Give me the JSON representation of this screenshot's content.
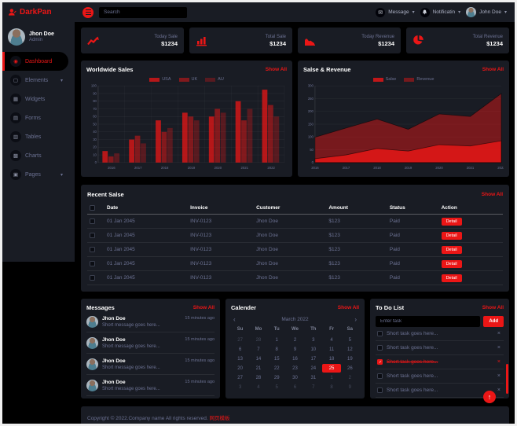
{
  "colors": {
    "primary": "#EB1616",
    "panel": "#191C24",
    "muted": "#6C7293",
    "background": "#000000"
  },
  "navbar": {
    "brand": "DarkPan",
    "search_placeholder": "Search",
    "message_label": "Message",
    "notification_label": "Notificatin",
    "user_label": "John Doe"
  },
  "sidebar": {
    "user": {
      "name": "Jhon Doe",
      "role": "Admin"
    },
    "items": [
      {
        "label": "Dashboard",
        "icon": "dashboard-icon",
        "active": true
      },
      {
        "label": "Elements",
        "icon": "elements-icon",
        "chevron": true
      },
      {
        "label": "Widgets",
        "icon": "widgets-icon"
      },
      {
        "label": "Forms",
        "icon": "forms-icon"
      },
      {
        "label": "Tables",
        "icon": "tables-icon"
      },
      {
        "label": "Charts",
        "icon": "charts-icon"
      },
      {
        "label": "Pages",
        "icon": "pages-icon",
        "chevron": true
      }
    ]
  },
  "stats": [
    {
      "label": "Today Sale",
      "value": "$1234",
      "icon": "line-chart-icon"
    },
    {
      "label": "Total Sale",
      "value": "$1234",
      "icon": "bar-chart-icon"
    },
    {
      "label": "Today Revenue",
      "value": "$1234",
      "icon": "area-chart-icon"
    },
    {
      "label": "Total Revenue",
      "value": "$1234",
      "icon": "pie-chart-icon"
    }
  ],
  "chart_data": [
    {
      "type": "bar",
      "title": "Worldwide Sales",
      "show_all": "Show All",
      "categories": [
        "2016",
        "2017",
        "2018",
        "2019",
        "2020",
        "2021",
        "2022"
      ],
      "series": [
        {
          "name": "USA",
          "color": "rgba(235,22,22,0.75)",
          "values": [
            15,
            30,
            55,
            65,
            60,
            80,
            95
          ]
        },
        {
          "name": "UK",
          "color": "rgba(235,22,22,0.5)",
          "values": [
            8,
            35,
            40,
            60,
            70,
            55,
            75
          ]
        },
        {
          "name": "AU",
          "color": "rgba(235,22,22,0.3)",
          "values": [
            12,
            25,
            45,
            55,
            65,
            70,
            60
          ]
        }
      ],
      "ylim": [
        0,
        100
      ],
      "ytick": 10,
      "grid": true,
      "legend_position": "top"
    },
    {
      "type": "area",
      "title": "Salse & Revenue",
      "show_all": "Show All",
      "categories": [
        "2016",
        "2017",
        "2018",
        "2019",
        "2020",
        "2021",
        "2022"
      ],
      "series": [
        {
          "name": "Salse",
          "color": "rgba(235,22,22,0.8)",
          "values": [
            15,
            30,
            55,
            45,
            70,
            65,
            85
          ]
        },
        {
          "name": "Revenue",
          "color": "rgba(235,22,22,0.45)",
          "values": [
            99,
            135,
            170,
            130,
            190,
            180,
            270
          ]
        }
      ],
      "ylim": [
        0,
        300
      ],
      "ytick": 50,
      "grid": true,
      "legend_position": "top"
    }
  ],
  "sales_table": {
    "title": "Recent Salse",
    "show_all": "Show All",
    "columns": [
      "Date",
      "Invoice",
      "Customer",
      "Amount",
      "Status",
      "Action"
    ],
    "rows": [
      {
        "date": "01 Jan 2045",
        "invoice": "INV-0123",
        "customer": "Jhon Doe",
        "amount": "$123",
        "status": "Paid",
        "action": "Detail"
      },
      {
        "date": "01 Jan 2045",
        "invoice": "INV-0123",
        "customer": "Jhon Doe",
        "amount": "$123",
        "status": "Paid",
        "action": "Detail"
      },
      {
        "date": "01 Jan 2045",
        "invoice": "INV-0123",
        "customer": "Jhon Doe",
        "amount": "$123",
        "status": "Paid",
        "action": "Detail"
      },
      {
        "date": "01 Jan 2045",
        "invoice": "INV-0123",
        "customer": "Jhon Doe",
        "amount": "$123",
        "status": "Paid",
        "action": "Detail"
      },
      {
        "date": "01 Jan 2045",
        "invoice": "INV-0123",
        "customer": "Jhon Doe",
        "amount": "$123",
        "status": "Paid",
        "action": "Detail"
      }
    ]
  },
  "messages": {
    "title": "Messages",
    "show_all": "Show All",
    "items": [
      {
        "name": "Jhon Doe",
        "time": "15 minutes ago",
        "text": "Short message goes here..."
      },
      {
        "name": "Jhon Doe",
        "time": "15 minutes ago",
        "text": "Short message goes here..."
      },
      {
        "name": "Jhon Doe",
        "time": "15 minutes ago",
        "text": "Short message goes here..."
      },
      {
        "name": "Jhon Doe",
        "time": "15 minutes ago",
        "text": "Short message goes here..."
      }
    ]
  },
  "calendar": {
    "title": "Calender",
    "show_all": "Show All",
    "month": "March 2022",
    "prev": "‹",
    "next": "›",
    "weekdays": [
      "Su",
      "Mo",
      "Tu",
      "We",
      "Th",
      "Fr",
      "Sa"
    ],
    "cells": [
      {
        "d": "27",
        "out": true
      },
      {
        "d": "28",
        "out": true
      },
      {
        "d": "1"
      },
      {
        "d": "2"
      },
      {
        "d": "3"
      },
      {
        "d": "4"
      },
      {
        "d": "5"
      },
      {
        "d": "6"
      },
      {
        "d": "7"
      },
      {
        "d": "8"
      },
      {
        "d": "9"
      },
      {
        "d": "10"
      },
      {
        "d": "11"
      },
      {
        "d": "12"
      },
      {
        "d": "13"
      },
      {
        "d": "14"
      },
      {
        "d": "15"
      },
      {
        "d": "16"
      },
      {
        "d": "17"
      },
      {
        "d": "18"
      },
      {
        "d": "19"
      },
      {
        "d": "20"
      },
      {
        "d": "21"
      },
      {
        "d": "22"
      },
      {
        "d": "23"
      },
      {
        "d": "24"
      },
      {
        "d": "25",
        "sel": true
      },
      {
        "d": "26"
      },
      {
        "d": "27"
      },
      {
        "d": "28"
      },
      {
        "d": "29"
      },
      {
        "d": "30"
      },
      {
        "d": "31"
      },
      {
        "d": "1",
        "out": true
      },
      {
        "d": "2",
        "out": true
      },
      {
        "d": "3",
        "out": true
      },
      {
        "d": "4",
        "out": true
      },
      {
        "d": "5",
        "out": true
      },
      {
        "d": "6",
        "out": true
      },
      {
        "d": "7",
        "out": true
      },
      {
        "d": "8",
        "out": true
      },
      {
        "d": "9",
        "out": true
      }
    ]
  },
  "todo": {
    "title": "To Do List",
    "show_all": "Show All",
    "input_placeholder": "Enter task",
    "add_label": "Add",
    "items": [
      {
        "text": "Short task goes here..."
      },
      {
        "text": "Short task goes here..."
      },
      {
        "text": "Short task goes here...",
        "done": true
      },
      {
        "text": "Short task goes here..."
      },
      {
        "text": "Short task goes here..."
      }
    ]
  },
  "footer": {
    "text": "Copyright © 2022.Company name All rights reserved.",
    "link": "网页模板"
  },
  "back_to_top": "↑"
}
